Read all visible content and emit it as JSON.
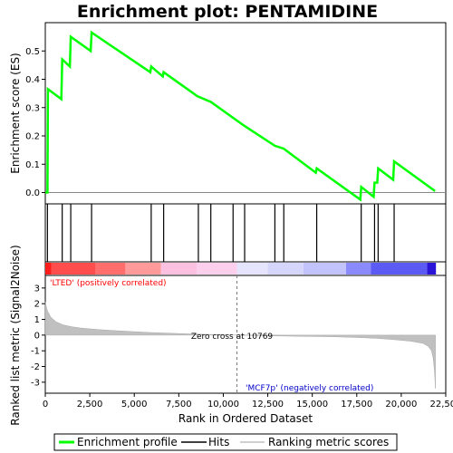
{
  "chart_data": {
    "type": "line",
    "title": "Enrichment plot: PENTAMIDINE",
    "es_panel": {
      "ylabel": "Enrichment score (ES)",
      "ylim": [
        -0.04,
        0.6
      ],
      "yticks": [
        0.0,
        0.1,
        0.2,
        0.3,
        0.4,
        0.5
      ],
      "ytick_labels": [
        "0.0",
        "0.1",
        "0.2",
        "0.3",
        "0.4",
        "0.5"
      ],
      "line_color": "#00ff00",
      "points": [
        [
          0,
          0.0
        ],
        [
          120,
          0.0
        ],
        [
          150,
          0.365
        ],
        [
          900,
          0.33
        ],
        [
          950,
          0.47
        ],
        [
          1380,
          0.445
        ],
        [
          1430,
          0.55
        ],
        [
          2550,
          0.5
        ],
        [
          2600,
          0.565
        ],
        [
          5900,
          0.425
        ],
        [
          5950,
          0.445
        ],
        [
          6600,
          0.41
        ],
        [
          6650,
          0.425
        ],
        [
          8550,
          0.34
        ],
        [
          9300,
          0.32
        ],
        [
          11200,
          0.235
        ],
        [
          12900,
          0.165
        ],
        [
          13400,
          0.155
        ],
        [
          15200,
          0.07
        ],
        [
          15250,
          0.085
        ],
        [
          17700,
          -0.025
        ],
        [
          17750,
          0.02
        ],
        [
          18450,
          -0.015
        ],
        [
          18500,
          0.035
        ],
        [
          18650,
          0.035
        ],
        [
          18700,
          0.085
        ],
        [
          19550,
          0.045
        ],
        [
          19600,
          0.11
        ],
        [
          21900,
          0.005
        ]
      ]
    },
    "hits": [
      120,
      950,
      1430,
      2600,
      5950,
      6650,
      8600,
      9300,
      10550,
      11200,
      12900,
      13400,
      15250,
      17750,
      18500,
      18700,
      19600
    ],
    "hits_color": "#000000",
    "rank_bar": {
      "segments": [
        {
          "start": 0,
          "end": 350,
          "color": "#ff1e1e"
        },
        {
          "start": 350,
          "end": 2800,
          "color": "#ff4d4d"
        },
        {
          "start": 2800,
          "end": 4500,
          "color": "#ff6d6d"
        },
        {
          "start": 4500,
          "end": 6500,
          "color": "#ff9a9a"
        },
        {
          "start": 6500,
          "end": 8500,
          "color": "#fcc0e0"
        },
        {
          "start": 8500,
          "end": 10769,
          "color": "#fcd0ec"
        },
        {
          "start": 10769,
          "end": 12500,
          "color": "#e4e4fc"
        },
        {
          "start": 12500,
          "end": 14500,
          "color": "#d6d6fc"
        },
        {
          "start": 14500,
          "end": 16900,
          "color": "#c2c2fc"
        },
        {
          "start": 16900,
          "end": 18300,
          "color": "#8a8afc"
        },
        {
          "start": 18300,
          "end": 21450,
          "color": "#5b5bf4"
        },
        {
          "start": 21450,
          "end": 21950,
          "color": "#2a14d8"
        }
      ],
      "pos_label": "'LTED' (positively correlated)",
      "pos_color": "#ff0000",
      "neg_label": "'MCF7p' (negatively correlated)",
      "neg_color": "#0000cc"
    },
    "metric_panel": {
      "ylabel": "Ranked list metric (Signal2Noise)",
      "ylim": [
        -3.7,
        3.8
      ],
      "yticks": [
        -3,
        -2,
        -1,
        0,
        1,
        2,
        3
      ],
      "ytick_labels": [
        "-3",
        "-2",
        "-1",
        "0",
        "1",
        "2",
        "3"
      ],
      "fill_color": "#c0c0c0",
      "zero_cross_label": "Zero cross at 10769",
      "zero_cross": 10769,
      "curve": [
        [
          0,
          2.1
        ],
        [
          100,
          1.6
        ],
        [
          300,
          1.15
        ],
        [
          600,
          0.85
        ],
        [
          1000,
          0.65
        ],
        [
          1500,
          0.53
        ],
        [
          2000,
          0.45
        ],
        [
          3000,
          0.35
        ],
        [
          4000,
          0.28
        ],
        [
          5000,
          0.22
        ],
        [
          6000,
          0.16
        ],
        [
          7000,
          0.12
        ],
        [
          8000,
          0.08
        ],
        [
          9000,
          0.05
        ],
        [
          10000,
          0.02
        ],
        [
          10769,
          0.0
        ],
        [
          12000,
          -0.03
        ],
        [
          14000,
          -0.07
        ],
        [
          16000,
          -0.1
        ],
        [
          17500,
          -0.15
        ],
        [
          18500,
          -0.2
        ],
        [
          19500,
          -0.28
        ],
        [
          20500,
          -0.38
        ],
        [
          21200,
          -0.52
        ],
        [
          21500,
          -0.7
        ],
        [
          21700,
          -1.0
        ],
        [
          21800,
          -1.5
        ],
        [
          21870,
          -2.3
        ],
        [
          21920,
          -3.4
        ]
      ]
    },
    "x_axis": {
      "label": "Rank in Ordered Dataset",
      "xlim": [
        0,
        22500
      ],
      "ticks": [
        0,
        2500,
        5000,
        7500,
        10000,
        12500,
        15000,
        17500,
        20000,
        22500
      ],
      "tick_labels": [
        "0",
        "2,500",
        "5,000",
        "7,500",
        "10,000",
        "12,500",
        "15,000",
        "17,500",
        "20,000",
        "22,500"
      ]
    },
    "legend": {
      "placement": "bottom",
      "entries": [
        {
          "label": "Enrichment profile",
          "color": "#00ff00"
        },
        {
          "label": "Hits",
          "color": "#000000"
        },
        {
          "label": "Ranking metric scores",
          "color": "#c0c0c0"
        }
      ]
    }
  }
}
